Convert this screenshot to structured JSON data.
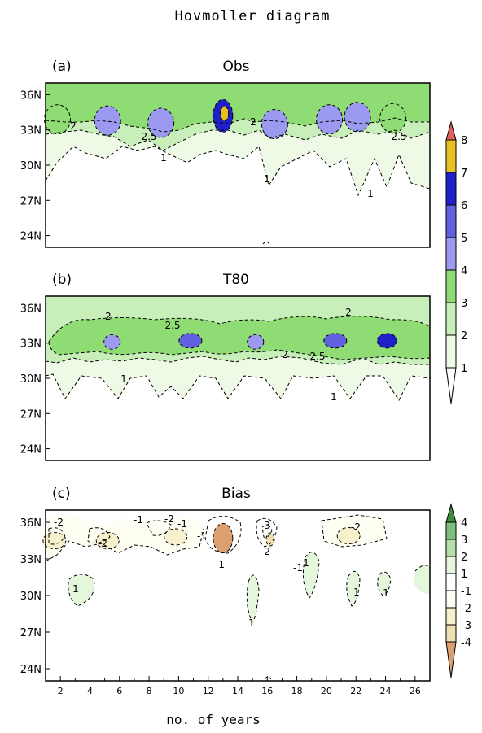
{
  "title": "Hovmoller diagram",
  "xlabel": "no. of years",
  "chart_data": [
    {
      "panel": "(a)",
      "title": "Obs",
      "type": "heatmap",
      "x_range": [
        1,
        27
      ],
      "y_range": [
        23,
        37
      ],
      "y_ticks": [
        "36N",
        "33N",
        "30N",
        "27N",
        "24N"
      ],
      "contour_labels": [
        "2",
        "2.5",
        "1",
        "2",
        "1",
        "1",
        "2.5"
      ],
      "blobs": [
        {
          "x": 1.8,
          "y": 33.9,
          "level": 3
        },
        {
          "x": 5.2,
          "y": 33.8,
          "level": 4
        },
        {
          "x": 8.8,
          "y": 33.6,
          "level": 4
        },
        {
          "x": 13.0,
          "y": 34.2,
          "level": 6
        },
        {
          "x": 13.1,
          "y": 34.4,
          "level": 7
        },
        {
          "x": 16.5,
          "y": 33.5,
          "level": 4
        },
        {
          "x": 20.2,
          "y": 33.9,
          "level": 4
        },
        {
          "x": 22.1,
          "y": 34.1,
          "level": 4
        },
        {
          "x": 24.5,
          "y": 34.0,
          "level": 3
        }
      ]
    },
    {
      "panel": "(b)",
      "title": "T80",
      "type": "heatmap",
      "x_range": [
        1,
        27
      ],
      "y_range": [
        23,
        37
      ],
      "y_ticks": [
        "36N",
        "33N",
        "30N",
        "27N",
        "24N"
      ],
      "contour_labels": [
        "2",
        "2.5",
        "1",
        "2",
        "2.5",
        "2",
        "1"
      ],
      "blobs": [
        {
          "x": 5.5,
          "y": 33.1,
          "level": 4
        },
        {
          "x": 10.8,
          "y": 33.2,
          "level": 5
        },
        {
          "x": 15.2,
          "y": 33.1,
          "level": 4
        },
        {
          "x": 20.6,
          "y": 33.2,
          "level": 5
        },
        {
          "x": 24.1,
          "y": 33.2,
          "level": 6
        }
      ]
    },
    {
      "panel": "(c)",
      "title": "Bias",
      "type": "heatmap",
      "x_range": [
        1,
        27
      ],
      "y_range": [
        23,
        37
      ],
      "y_ticks": [
        "36N",
        "33N",
        "30N",
        "27N",
        "24N"
      ],
      "contour_labels": [
        "-2",
        "-2",
        "-1",
        "-2",
        "-1",
        "-1",
        "-3",
        "-2",
        "-1",
        "1",
        "-1",
        "-2",
        "1",
        "1",
        "1",
        "1"
      ],
      "blobs": [
        {
          "x": 13.0,
          "y": 34.7,
          "level": -4
        },
        {
          "x": 16.2,
          "y": 34.6,
          "level": -3
        },
        {
          "x": 1.6,
          "y": 34.5,
          "level": -2
        },
        {
          "x": 9.8,
          "y": 34.8,
          "level": -2
        },
        {
          "x": 21.5,
          "y": 34.9,
          "level": -2
        },
        {
          "x": 5.2,
          "y": 34.5,
          "level": -2
        }
      ]
    }
  ],
  "colorbars": [
    {
      "name": "top",
      "ticks": [
        "8",
        "7",
        "6",
        "5",
        "4",
        "3",
        "2",
        "1"
      ]
    },
    {
      "name": "bottom",
      "ticks": [
        "4",
        "3",
        "2",
        "1",
        "-1",
        "-2",
        "-3",
        "-4"
      ]
    }
  ],
  "x_ticks": [
    "2",
    "4",
    "6",
    "8",
    "10",
    "12",
    "14",
    "16",
    "18",
    "20",
    "22",
    "24",
    "26"
  ],
  "colors": {
    "lvl1": "#eef9e6",
    "lvl2": "#c8efb9",
    "lvl3": "#8fdc74",
    "lvl4": "#9b9af0",
    "lvl5": "#6060e0",
    "lvl6": "#2020c8",
    "lvl7": "#e8c020",
    "lvl8": "#e06060",
    "b4": "#3c8c3c",
    "b3": "#7cc07c",
    "b2": "#b4e0a8",
    "b1": "#e4f7dc",
    "bm1": "#fffef2",
    "bm2": "#f7f0cc",
    "bm3": "#eedfb0",
    "bm4": "#dca070"
  }
}
